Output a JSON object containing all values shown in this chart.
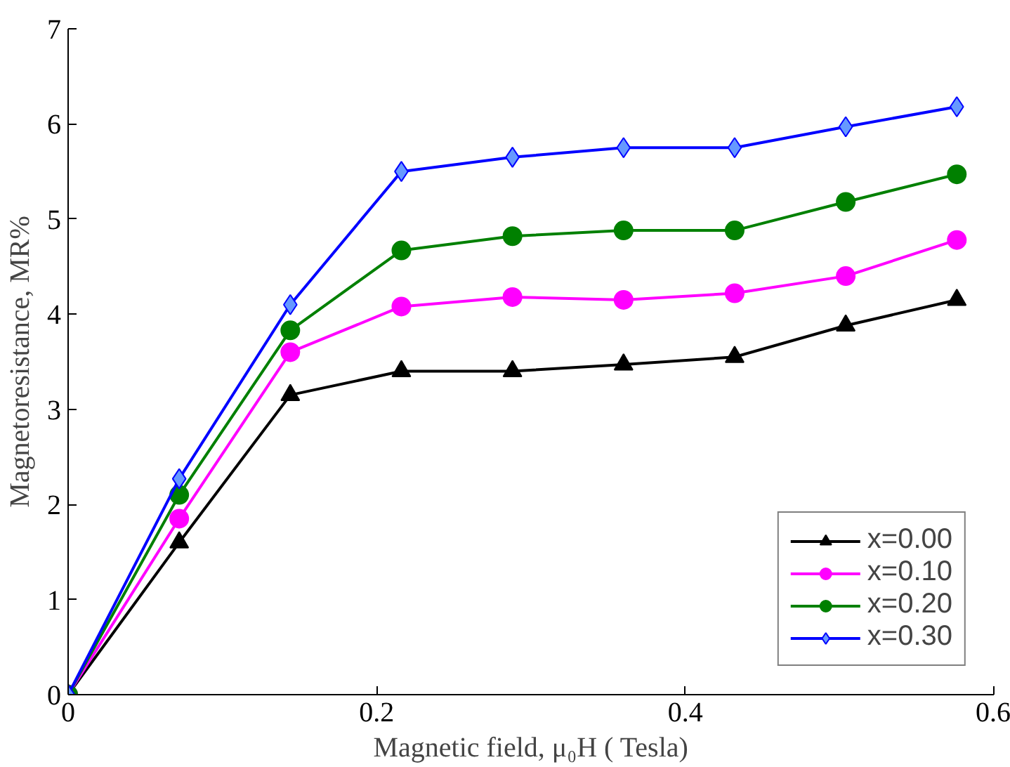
{
  "chart_data": {
    "type": "line",
    "xlabel": "Magnetic field, μ₀H ( Tesla)",
    "ylabel": "Magnetoresistance, MR%",
    "x": [
      0,
      0.072,
      0.144,
      0.216,
      0.288,
      0.36,
      0.432,
      0.504,
      0.576
    ],
    "xlim": [
      0,
      0.6
    ],
    "xticks": [
      0,
      0.2,
      0.4,
      0.6
    ],
    "ylim": [
      0,
      7
    ],
    "yticks": [
      0,
      1,
      2,
      3,
      4,
      5,
      6,
      7
    ],
    "grid": false,
    "legend": "bottom right",
    "line_style": "solid",
    "series": [
      {
        "name": "x=0.00",
        "color": "#000000",
        "marker": "triangle",
        "values": [
          0,
          1.6,
          3.15,
          3.4,
          3.4,
          3.47,
          3.55,
          3.88,
          4.15
        ]
      },
      {
        "name": "x=0.10",
        "color": "#ff00ff",
        "marker": "circle",
        "values": [
          0,
          1.85,
          3.6,
          4.08,
          4.18,
          4.15,
          4.22,
          4.4,
          4.78
        ]
      },
      {
        "name": "x=0.20",
        "color": "#008000",
        "marker": "circle",
        "values": [
          0,
          2.1,
          3.83,
          4.67,
          4.82,
          4.88,
          4.88,
          5.18,
          5.47
        ]
      },
      {
        "name": "x=0.30",
        "color": "#0000ff",
        "marker": "diamond",
        "values": [
          0,
          2.27,
          4.1,
          5.5,
          5.65,
          5.75,
          5.75,
          5.97,
          6.18
        ]
      }
    ]
  }
}
